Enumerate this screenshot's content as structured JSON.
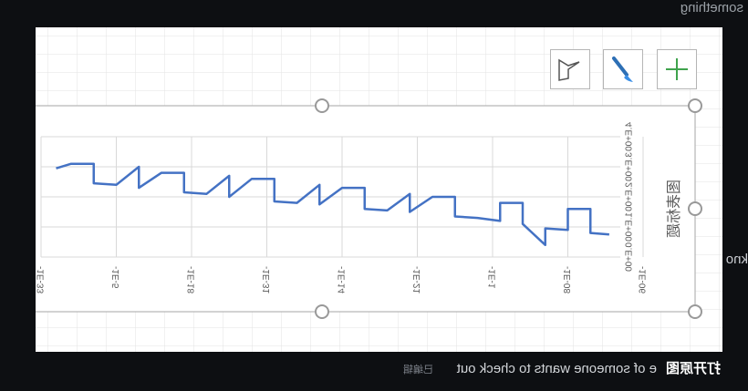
{
  "ui": {
    "top_text": "something",
    "side_text": "kno",
    "open_image": "打开原图",
    "message": "e of someone wants to check out",
    "edited": "已编辑"
  },
  "chart_data": {
    "type": "line",
    "title": "图表标题",
    "x": [
      0.45,
      0.7,
      0.7,
      1.0,
      1.0,
      1.3,
      1.3,
      1.6,
      1.6,
      1.9,
      1.9,
      2.2,
      2.5,
      2.5,
      2.8,
      3.1,
      3.1,
      3.4,
      3.7,
      3.7,
      4.0,
      4.3,
      4.3,
      4.6,
      4.9,
      4.9,
      5.2,
      5.5,
      5.5,
      5.8,
      6.1,
      6.1,
      6.4,
      6.7,
      6.7,
      7.0,
      7.3,
      7.3,
      7.6,
      7.8
    ],
    "series": [
      {
        "color": "#4472c4",
        "values": [
          0.75,
          0.8,
          1.6,
          1.6,
          0.9,
          0.95,
          0.4,
          1.1,
          1.8,
          1.8,
          1.2,
          1.3,
          1.35,
          2.0,
          2.0,
          1.5,
          2.1,
          1.55,
          1.6,
          2.3,
          2.3,
          1.75,
          2.4,
          1.8,
          1.85,
          2.6,
          2.6,
          2.0,
          2.7,
          2.1,
          2.15,
          2.8,
          2.8,
          2.3,
          3.0,
          2.4,
          2.45,
          3.1,
          3.1,
          2.95
        ]
      }
    ],
    "xlim": [
      0,
      8
    ],
    "xticks": [
      {
        "value": 0,
        "label": "-1E-06"
      },
      {
        "value": 1,
        "label": "-1E-08"
      },
      {
        "value": 2,
        "label": "-1E-1"
      },
      {
        "value": 3,
        "label": "-1E-21"
      },
      {
        "value": 4,
        "label": "-1E-14"
      },
      {
        "value": 5,
        "label": "-1E-31"
      },
      {
        "value": 6,
        "label": "-1E-18"
      },
      {
        "value": 7,
        "label": "-1E-5"
      },
      {
        "value": 8,
        "label": "-1E-33"
      }
    ],
    "ylim": [
      0,
      4
    ],
    "yticks": [
      {
        "value": 0,
        "label": "0.E+00"
      },
      {
        "value": 1,
        "label": "1.E+00"
      },
      {
        "value": 2,
        "label": "2.E+00"
      },
      {
        "value": 3,
        "label": "3.E+00"
      },
      {
        "value": 4,
        "label": "4.E+00"
      }
    ],
    "grid": true
  }
}
